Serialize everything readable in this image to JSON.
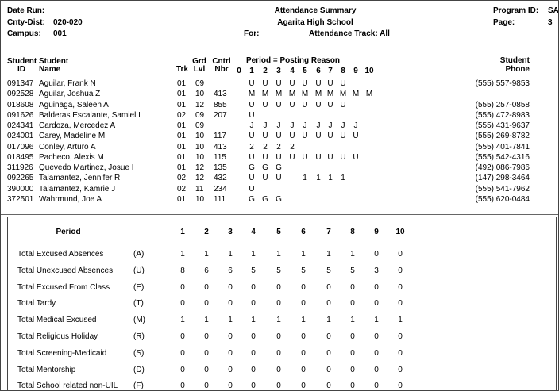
{
  "header": {
    "date_run_label": "Date Run:",
    "title": "Attendance Summary",
    "program_id_label": "Program ID:",
    "program_id": "SA",
    "cnty_dist_label": "Cnty-Dist:",
    "cnty_dist": "020-020",
    "school": "Agarita High School",
    "page_label": "Page:",
    "page": "3",
    "campus_label": "Campus:",
    "campus": "001",
    "for_label": "For:",
    "track": "Attendance Track: All"
  },
  "columns": {
    "student_id": [
      "Student",
      "ID"
    ],
    "student_name": [
      "Student",
      "Name"
    ],
    "trk": "Trk",
    "grd_lvl": [
      "Grd",
      "Lvl"
    ],
    "cntrl_nbr": [
      "Cntrl",
      "Nbr"
    ],
    "period_title": "Period = Posting Reason",
    "periods": [
      0,
      1,
      2,
      3,
      4,
      5,
      6,
      7,
      8,
      9,
      10
    ],
    "phone": [
      "Student",
      "Phone"
    ]
  },
  "students": [
    {
      "id": "091347",
      "name": "Aguilar, Frank N",
      "trk": "01",
      "grd": "09",
      "cntrl": null,
      "periods": [
        null,
        "U",
        "U",
        "U",
        "U",
        "U",
        "U",
        "U",
        "U",
        null,
        null
      ],
      "phone": "(555) 557-9853"
    },
    {
      "id": "092528",
      "name": "Aguilar, Joshua Z",
      "trk": "01",
      "grd": "10",
      "cntrl": "413",
      "periods": [
        null,
        "M",
        "M",
        "M",
        "M",
        "M",
        "M",
        "M",
        "M",
        "M",
        "M"
      ],
      "phone": null
    },
    {
      "id": "018608",
      "name": "Aguinaga, Saleen A",
      "trk": "01",
      "grd": "12",
      "cntrl": "855",
      "periods": [
        null,
        "U",
        "U",
        "U",
        "U",
        "U",
        "U",
        "U",
        "U",
        null,
        null
      ],
      "phone": "(555) 257-0858"
    },
    {
      "id": "091626",
      "name": "Balderas Escalante, Samiel I",
      "trk": "02",
      "grd": "09",
      "cntrl": "207",
      "periods": [
        null,
        "U",
        null,
        null,
        null,
        null,
        null,
        null,
        null,
        null,
        null
      ],
      "phone": "(555) 472-8983"
    },
    {
      "id": "024341",
      "name": "Cardoza, Mercedez A",
      "trk": "01",
      "grd": "09",
      "cntrl": null,
      "periods": [
        null,
        "J",
        "J",
        "J",
        "J",
        "J",
        "J",
        "J",
        "J",
        "J",
        null
      ],
      "phone": "(555) 431-9637"
    },
    {
      "id": "024001",
      "name": "Carey, Madeline M",
      "trk": "01",
      "grd": "10",
      "cntrl": "117",
      "periods": [
        null,
        "U",
        "U",
        "U",
        "U",
        "U",
        "U",
        "U",
        "U",
        "U",
        null
      ],
      "phone": "(555) 269-8782"
    },
    {
      "id": "017096",
      "name": "Conley, Arturo A",
      "trk": "01",
      "grd": "10",
      "cntrl": "413",
      "periods": [
        null,
        "2",
        "2",
        "2",
        "2",
        null,
        null,
        null,
        null,
        null,
        null
      ],
      "phone": "(555) 401-7841"
    },
    {
      "id": "018495",
      "name": "Pacheco, Alexis M",
      "trk": "01",
      "grd": "10",
      "cntrl": "115",
      "periods": [
        null,
        "U",
        "U",
        "U",
        "U",
        "U",
        "U",
        "U",
        "U",
        "U",
        null
      ],
      "phone": "(555) 542-4316"
    },
    {
      "id": "311926",
      "name": "Quevedo Martinez, Josue I",
      "trk": "01",
      "grd": "12",
      "cntrl": "135",
      "periods": [
        null,
        "G",
        "G",
        "G",
        null,
        null,
        null,
        null,
        null,
        null,
        null
      ],
      "phone": "(492) 086-7986"
    },
    {
      "id": "092265",
      "name": "Talamantez, Jennifer R",
      "trk": "02",
      "grd": "12",
      "cntrl": "432",
      "periods": [
        null,
        "U",
        "U",
        "U",
        null,
        "1",
        "1",
        "1",
        "1",
        null,
        null
      ],
      "phone": "(147) 298-3464"
    },
    {
      "id": "390000",
      "name": "Talamantez, Kamrie J",
      "trk": "02",
      "grd": "11",
      "cntrl": "234",
      "periods": [
        null,
        "U",
        null,
        null,
        null,
        null,
        null,
        null,
        null,
        null,
        null
      ],
      "phone": "(555) 541-7962"
    },
    {
      "id": "372501",
      "name": "Wahrmund, Joe A",
      "trk": "01",
      "grd": "10",
      "cntrl": "111",
      "periods": [
        null,
        "G",
        "G",
        "G",
        null,
        null,
        null,
        null,
        null,
        null,
        null
      ],
      "phone": "(555) 620-0484"
    }
  ],
  "summary": {
    "period_label": "Period",
    "periods": [
      1,
      2,
      3,
      4,
      5,
      6,
      7,
      8,
      9,
      10
    ],
    "rows": [
      {
        "label": "Total Excused Absences",
        "code": "(A)",
        "values": [
          1,
          1,
          1,
          1,
          1,
          1,
          1,
          1,
          0,
          0
        ]
      },
      {
        "label": "Total Unexcused Absences",
        "code": "(U)",
        "values": [
          8,
          6,
          6,
          5,
          5,
          5,
          5,
          5,
          3,
          0
        ]
      },
      {
        "label": "Total Excused From Class",
        "code": "(E)",
        "values": [
          0,
          0,
          0,
          0,
          0,
          0,
          0,
          0,
          0,
          0
        ]
      },
      {
        "label": "Total Tardy",
        "code": "(T)",
        "values": [
          0,
          0,
          0,
          0,
          0,
          0,
          0,
          0,
          0,
          0
        ]
      },
      {
        "label": "Total Medical Excused",
        "code": "(M)",
        "values": [
          1,
          1,
          1,
          1,
          1,
          1,
          1,
          1,
          1,
          1
        ]
      },
      {
        "label": "Total Religious Holiday",
        "code": "(R)",
        "values": [
          0,
          0,
          0,
          0,
          0,
          0,
          0,
          0,
          0,
          0
        ]
      },
      {
        "label": "Total Screening-Medicaid",
        "code": "(S)",
        "values": [
          0,
          0,
          0,
          0,
          0,
          0,
          0,
          0,
          0,
          0
        ]
      },
      {
        "label": "Total Mentorship",
        "code": "(D)",
        "values": [
          0,
          0,
          0,
          0,
          0,
          0,
          0,
          0,
          0,
          0
        ]
      },
      {
        "label": "Total School related non-UIL",
        "code": "(F)",
        "values": [
          0,
          0,
          0,
          0,
          0,
          0,
          0,
          0,
          0,
          0
        ]
      }
    ]
  }
}
